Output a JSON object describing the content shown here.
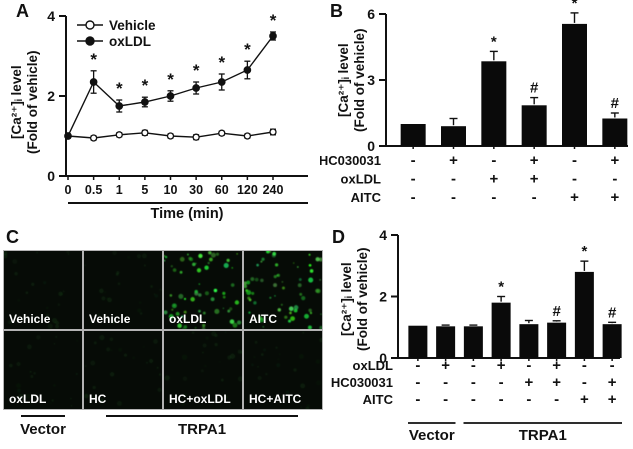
{
  "colors": {
    "ink": "#111111",
    "bar_fill": "#0a0a0a",
    "micro_bg": "#060b06",
    "dot_green": "#46c94b",
    "grid_gray": "#b3b3b3",
    "cell_label_white": "#ffffff"
  },
  "panels": {
    "a": {
      "letter": "A",
      "ylabel_line1": "[Ca²⁺]ᵢ level",
      "ylabel_line2": "(Fold of vehicle)",
      "xlabel": "Time (min)"
    },
    "b": {
      "letter": "B",
      "ylabel_line1": "[Ca²⁺]ᵢ level",
      "ylabel_line2": "(Fold of vehicle)"
    },
    "c": {
      "letter": "C",
      "rows": [
        [
          "Vehicle",
          "Vehicle",
          "oxLDL",
          "AITC"
        ],
        [
          "oxLDL",
          "HC",
          "HC+oxLDL",
          "HC+AITC"
        ]
      ],
      "intensities": [
        [
          "low",
          "low",
          "high",
          "high"
        ],
        [
          "low",
          "low",
          "low",
          "low"
        ]
      ],
      "groups": [
        {
          "label": "Vector"
        },
        {
          "label": "TRPA1"
        }
      ]
    },
    "d": {
      "letter": "D",
      "ylabel_line1": "[Ca²⁺]ᵢ level",
      "ylabel_line2": "(Fold of vehicle)"
    }
  },
  "chart_data": [
    {
      "panel": "A",
      "type": "line",
      "title": "",
      "xlabel": "Time (min)",
      "ylabel": "[Ca²⁺]ᵢ level (Fold of vehicle)",
      "categories": [
        "0",
        "0.5",
        "1",
        "5",
        "10",
        "30",
        "60",
        "120",
        "240"
      ],
      "ylim": [
        0,
        4
      ],
      "yticks": [
        0,
        2,
        4
      ],
      "legend_position": "top-left-inside",
      "series": [
        {
          "name": "Vehicle",
          "marker": "open-circle",
          "values": [
            1.0,
            0.95,
            1.03,
            1.08,
            1.0,
            0.97,
            1.07,
            1.0,
            1.1
          ],
          "errors": [
            0.05,
            0.05,
            0.05,
            0.06,
            0.05,
            0.06,
            0.05,
            0.05,
            0.07
          ],
          "sig": [
            "",
            "",
            "",
            "",
            "",
            "",
            "",
            "",
            ""
          ]
        },
        {
          "name": "oxLDL",
          "marker": "filled-circle",
          "values": [
            1.0,
            2.35,
            1.75,
            1.85,
            2.0,
            2.2,
            2.35,
            2.65,
            3.5
          ],
          "errors": [
            0,
            0.28,
            0.15,
            0.12,
            0.13,
            0.15,
            0.2,
            0.22,
            0.1
          ],
          "sig": [
            "",
            "*",
            "*",
            "*",
            "*",
            "*",
            "*",
            "*",
            "*"
          ]
        }
      ]
    },
    {
      "panel": "B",
      "type": "bar",
      "ylabel": "[Ca²⁺]ᵢ level (Fold of vehicle)",
      "ylim": [
        0,
        6
      ],
      "yticks": [
        0,
        3,
        6
      ],
      "values": [
        1.0,
        0.9,
        3.85,
        1.85,
        5.55,
        1.25
      ],
      "errors": [
        0,
        0.35,
        0.45,
        0.35,
        0.5,
        0.25
      ],
      "sig": [
        "",
        "",
        "*",
        "#",
        "*",
        "#"
      ],
      "condition_rows": [
        {
          "label": "HC030031",
          "signs": [
            "-",
            "+",
            "-",
            "+",
            "-",
            "+"
          ]
        },
        {
          "label": "oxLDL",
          "signs": [
            "-",
            "-",
            "+",
            "+",
            "-",
            "-"
          ]
        },
        {
          "label": "AITC",
          "signs": [
            "-",
            "-",
            "-",
            "-",
            "+",
            "+"
          ]
        }
      ]
    },
    {
      "panel": "D",
      "type": "bar",
      "ylabel": "[Ca²⁺]ᵢ level (Fold of vehicle)",
      "ylim": [
        0,
        4
      ],
      "yticks": [
        0,
        2,
        4
      ],
      "values": [
        1.05,
        1.03,
        1.03,
        1.8,
        1.1,
        1.15,
        2.8,
        1.1
      ],
      "errors": [
        0,
        0.04,
        0.04,
        0.2,
        0.12,
        0.06,
        0.35,
        0.06
      ],
      "sig": [
        "",
        "",
        "",
        "*",
        "",
        "#",
        "*",
        "#"
      ],
      "condition_rows": [
        {
          "label": "oxLDL",
          "signs": [
            "-",
            "+",
            "-",
            "+",
            "-",
            "+",
            "-",
            "-"
          ]
        },
        {
          "label": "HC030031",
          "signs": [
            "-",
            "-",
            "-",
            "-",
            "+",
            "+",
            "-",
            "+"
          ]
        },
        {
          "label": "AITC",
          "signs": [
            "-",
            "-",
            "-",
            "-",
            "-",
            "-",
            "+",
            "+"
          ]
        }
      ],
      "group_labels": [
        {
          "label": "Vector",
          "span": [
            0,
            1
          ]
        },
        {
          "label": "TRPA1",
          "span": [
            2,
            7
          ]
        }
      ]
    }
  ]
}
